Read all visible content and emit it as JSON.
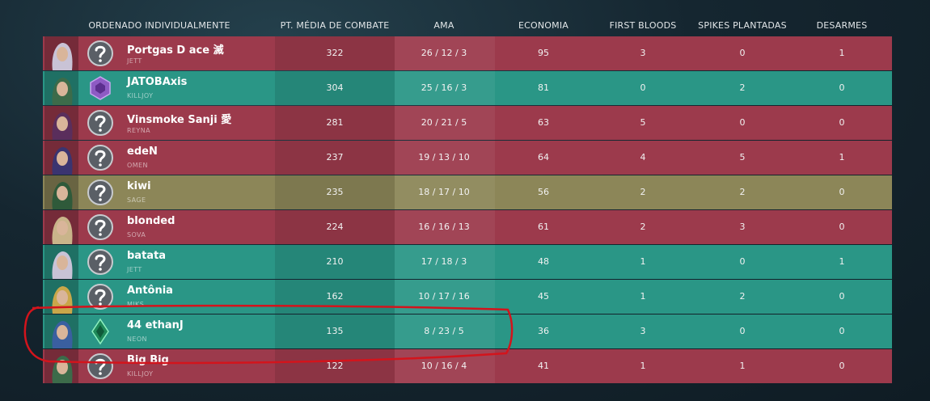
{
  "columns": [
    "ORDENADO INDIVIDUALMENTE",
    "PT. MÉDIA DE COMBATE",
    "AMA",
    "ECONOMIA",
    "FIRST BLOODS",
    "SPIKES PLANTADAS",
    "DESARMES"
  ],
  "rows": [
    {
      "name": "Portgas D ace 滅",
      "agent": "JETT",
      "color": "#9c3a4c",
      "acs": 322,
      "kda": "26 / 12 / 3",
      "economy": 95,
      "first_bloods": 3,
      "plants": 0,
      "defuses": 1
    },
    {
      "name": "JATOBAxis",
      "agent": "KILLJOY",
      "color": "#2a9686",
      "acs": 304,
      "kda": "25 / 16 / 3",
      "economy": 81,
      "first_bloods": 0,
      "plants": 2,
      "defuses": 0
    },
    {
      "name": "Vinsmoke Sanji 愛",
      "agent": "REYNA",
      "color": "#9c3a4c",
      "acs": 281,
      "kda": "20 / 21 / 5",
      "economy": 63,
      "first_bloods": 5,
      "plants": 0,
      "defuses": 0
    },
    {
      "name": "edeN",
      "agent": "OMEN",
      "color": "#9c3a4c",
      "acs": 237,
      "kda": "19 / 13 / 10",
      "economy": 64,
      "first_bloods": 4,
      "plants": 5,
      "defuses": 1
    },
    {
      "name": "kiwi",
      "agent": "SAGE",
      "color": "#8c8658",
      "acs": 235,
      "kda": "18 / 17 / 10",
      "economy": 56,
      "first_bloods": 2,
      "plants": 2,
      "defuses": 0
    },
    {
      "name": "blonded",
      "agent": "SOVA",
      "color": "#9c3a4c",
      "acs": 224,
      "kda": "16 / 16 / 13",
      "economy": 61,
      "first_bloods": 2,
      "plants": 3,
      "defuses": 0
    },
    {
      "name": "batata",
      "agent": "JETT",
      "color": "#2a9686",
      "acs": 210,
      "kda": "17 / 18 / 3",
      "economy": 48,
      "first_bloods": 1,
      "plants": 0,
      "defuses": 1
    },
    {
      "name": "Antônia",
      "agent": "MIKS",
      "color": "#2a9686",
      "acs": 162,
      "kda": "10 / 17 / 16",
      "economy": 45,
      "first_bloods": 1,
      "plants": 2,
      "defuses": 0
    },
    {
      "name": "44 ethanJ",
      "agent": "NEON",
      "color": "#2a9686",
      "acs": 135,
      "kda": "8 / 23 / 5",
      "economy": 36,
      "first_bloods": 3,
      "plants": 0,
      "defuses": 0
    },
    {
      "name": "Big Big",
      "agent": "KILLJOY",
      "color": "#9c3a4c",
      "acs": 122,
      "kda": "10 / 16 / 4",
      "economy": 41,
      "first_bloods": 1,
      "plants": 1,
      "defuses": 0
    }
  ]
}
